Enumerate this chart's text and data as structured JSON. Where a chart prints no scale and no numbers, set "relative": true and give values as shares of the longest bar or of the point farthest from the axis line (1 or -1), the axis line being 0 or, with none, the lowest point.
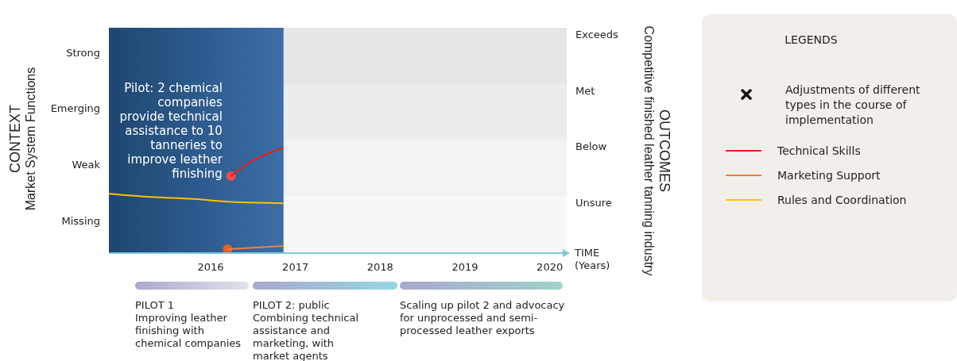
{
  "chart_data": {
    "type": "line",
    "relative": true,
    "xlabel": "TIME\n(Years)",
    "ylabel": "CONTEXT\nMarket System Functions",
    "legend_title": "LEGENDS",
    "xlim": [
      2014.8,
      2020.2
    ],
    "xticks": [
      2016,
      2017,
      2018,
      2019,
      2020
    ],
    "series": [
      {
        "name": "Technical Skills",
        "color": "#ee1c1c",
        "x": [
          2016.24,
          2016.4,
          2016.6,
          2016.86
        ],
        "values": [
          0.73,
          0.83,
          0.92,
          1
        ]
      },
      {
        "name": "Marketing Support",
        "color": "#f07f3c",
        "x": [
          2016.2,
          2016.86
        ],
        "values": [
          0.03,
          0.06
        ]
      },
      {
        "name": "Rules and Coordination",
        "color": "#ffc000",
        "x": [
          2014.8,
          2015.3,
          2015.8,
          2016.3,
          2016.86
        ],
        "values": [
          0.56,
          0.53,
          0.51,
          0.48,
          0.47
        ]
      },
      {
        "type": "scatter",
        "color": "#f04e4e",
        "x": [
          2016.24
        ],
        "values": [
          0.73
        ]
      },
      {
        "type": "scatter",
        "color": "#e0632a",
        "x": [
          2016.2
        ],
        "values": [
          0.03
        ]
      }
    ],
    "bands": [
      {
        "axis": "y",
        "from": 1.61,
        "to": 2.15,
        "color": "#e6e6e6"
      },
      {
        "axis": "y",
        "from": 1.08,
        "to": 1.61,
        "color": "#ececec"
      },
      {
        "axis": "y",
        "from": 0.54,
        "to": 1.08,
        "color": "#f2f2f2"
      },
      {
        "axis": "y",
        "from": 0,
        "to": 0.54,
        "color": "#f8f8f8"
      },
      {
        "axis": "x",
        "from": 2014.8,
        "to": 2016.86,
        "color": "#3c6ea8",
        "label": "Pilot: 2 chemical companies provide technical assistance to 10 tanneries to improve leather finishing"
      }
    ],
    "annotations": [
      "Adjustments of different types in the course of implementation",
      "PILOT 1\nImproving leather finishing with chemical companies",
      "PILOT 2: public\nCombining technical assistance and marketing, with market agents",
      "Scaling up pilot 2 and advocacy for unprocessed and semi-processed leather exports",
      "Missing",
      "Weak",
      "Emerging",
      "Strong",
      "Unsure",
      "Below",
      "Met",
      "Exceeds",
      "OUTCOMES\nCompetitive finished leather tanning industry"
    ],
    "legend": "right"
  }
}
